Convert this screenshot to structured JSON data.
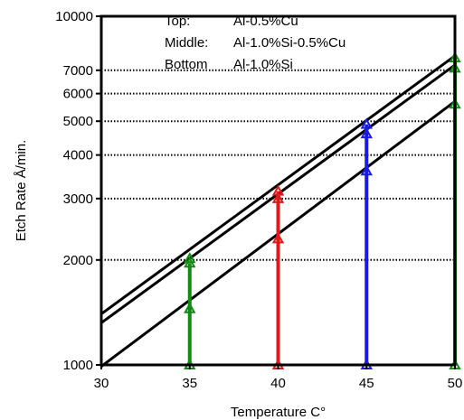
{
  "chart_data": {
    "type": "line",
    "title": "",
    "xlabel": "Temperature C°",
    "ylabel": "Etch Rate Å/min.",
    "xlim": [
      30,
      50
    ],
    "ylim": [
      1000,
      10000
    ],
    "yscale": "log",
    "x_ticks": [
      "30",
      "35",
      "40",
      "45",
      "50"
    ],
    "y_ticks": [
      "1000",
      "2000",
      "3000",
      "4000",
      "5000",
      "6000",
      "7000",
      "10000"
    ],
    "grid": "horizontal dotted",
    "legend": [
      {
        "label": "Top:",
        "value": "Al-0.5%Cu"
      },
      {
        "label": "Middle:",
        "value": "Al-1.0%Si-0.5%Cu"
      },
      {
        "label": "Bottom",
        "value": "Al-1.0%Si"
      }
    ],
    "series": [
      {
        "name": "Top",
        "x": [
          30,
          50
        ],
        "y": [
          1400,
          7700
        ]
      },
      {
        "name": "Middle",
        "x": [
          30,
          50
        ],
        "y": [
          1320,
          7250
        ]
      },
      {
        "name": "Bottom",
        "x": [
          30,
          50
        ],
        "y": [
          990,
          5700
        ]
      }
    ],
    "verticals": [
      {
        "x": 35,
        "color": "#138a13",
        "y_from": 1000,
        "y_to": 1960,
        "markers": [
          1000,
          1450,
          1960,
          2020
        ]
      },
      {
        "x": 40,
        "color": "#e01a1a",
        "y_from": 1000,
        "y_to": 3150,
        "markers": [
          1000,
          2300,
          3000,
          3150
        ]
      },
      {
        "x": 45,
        "color": "#1a1ae0",
        "y_from": 1000,
        "y_to": 4900,
        "markers": [
          1000,
          3600,
          4600,
          4900
        ]
      },
      {
        "x": 50,
        "color": "#138a13",
        "y_from": 1000,
        "y_to": 7600,
        "markers": [
          1000,
          5600,
          7100,
          7600
        ]
      }
    ]
  }
}
